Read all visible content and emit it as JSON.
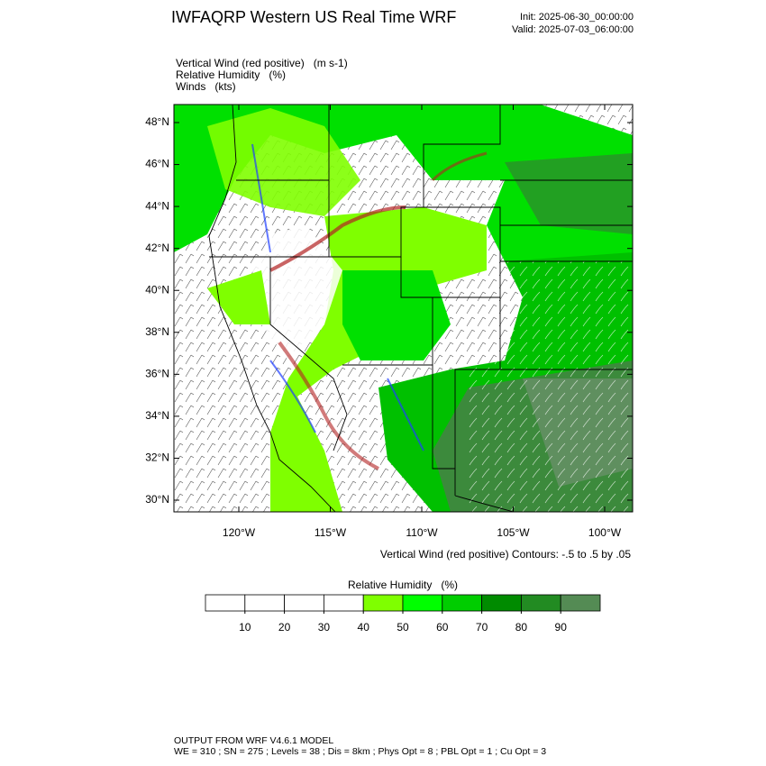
{
  "header": {
    "title": "IWFAQRP Western US Real Time WRF",
    "init": "Init: 2025-06-30_00:00:00",
    "valid": "Valid: 2025-07-03_06:00:00"
  },
  "fields": [
    "Vertical Wind (red positive)   (m s-1)",
    "Relative Humidity   (%)",
    "Winds   (kts)"
  ],
  "map": {
    "lat_ticks": [
      {
        "value": 48,
        "label": "48°N"
      },
      {
        "value": 46,
        "label": "46°N"
      },
      {
        "value": 44,
        "label": "44°N"
      },
      {
        "value": 42,
        "label": "42°N"
      },
      {
        "value": 40,
        "label": "40°N"
      },
      {
        "value": 38,
        "label": "38°N"
      },
      {
        "value": 36,
        "label": "36°N"
      },
      {
        "value": 34,
        "label": "34°N"
      },
      {
        "value": 32,
        "label": "32°N"
      },
      {
        "value": 30,
        "label": "30°N"
      }
    ],
    "lon_ticks": [
      {
        "value": -120,
        "label": "120°W"
      },
      {
        "value": -115,
        "label": "115°W"
      },
      {
        "value": -110,
        "label": "110°W"
      },
      {
        "value": -105,
        "label": "105°W"
      },
      {
        "value": -100,
        "label": "100°W"
      }
    ],
    "contour_note": "Vertical Wind (red positive) Contours: -.5 to .5 by .05"
  },
  "colorbar": {
    "title": "Relative Humidity   (%)",
    "ticks": [
      10,
      20,
      30,
      40,
      50,
      60,
      70,
      80,
      90
    ],
    "colors": [
      "#ffffff",
      "#ffffff",
      "#ffffff",
      "#ffffff",
      "#7fff00",
      "#00ff00",
      "#00cd00",
      "#008b00",
      "#228b22",
      "#548b54"
    ]
  },
  "footer": {
    "line1": "OUTPUT FROM WRF V4.6.1 MODEL",
    "line2": "WE = 310 ; SN = 275 ; Levels = 38 ; Dis = 8km ; Phys Opt = 8 ; PBL Opt = 1 ; Cu Opt = 3"
  }
}
